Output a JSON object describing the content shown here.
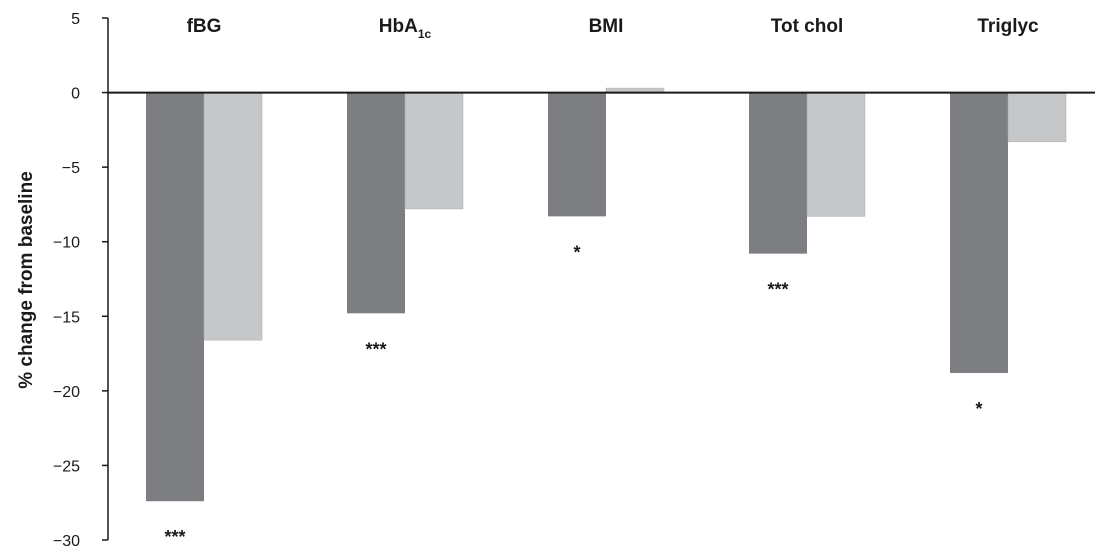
{
  "chart_data": {
    "type": "bar",
    "title": "",
    "xlabel": "",
    "ylabel": "% change from baseline",
    "ylim": [
      -30,
      5
    ],
    "yticks": [
      5,
      0,
      -5,
      -10,
      -15,
      -20,
      -25,
      -30
    ],
    "ytick_labels": [
      "5",
      "0",
      "−5",
      "−10",
      "−15",
      "−20",
      "−25",
      "−30"
    ],
    "categories": [
      {
        "label": "fBG",
        "base": "fBG",
        "sub": ""
      },
      {
        "label": "HbA1c",
        "base": "HbA",
        "sub": "1c"
      },
      {
        "label": "BMI",
        "base": "BMI",
        "sub": ""
      },
      {
        "label": "Tot chol",
        "base": "Tot chol",
        "sub": ""
      },
      {
        "label": "Triglyc",
        "base": "Triglyc",
        "sub": ""
      }
    ],
    "series": [
      {
        "values": [
          -27.4,
          -14.8,
          -8.3,
          -10.8,
          -18.8
        ],
        "color": "#7d7e82"
      },
      {
        "values": [
          -16.6,
          -7.8,
          0.3,
          -8.3,
          -3.3
        ],
        "color": "#c6c7c9"
      }
    ],
    "significance": [
      "***",
      "***",
      "*",
      "***",
      "*"
    ],
    "grid": false,
    "legend": "none"
  }
}
